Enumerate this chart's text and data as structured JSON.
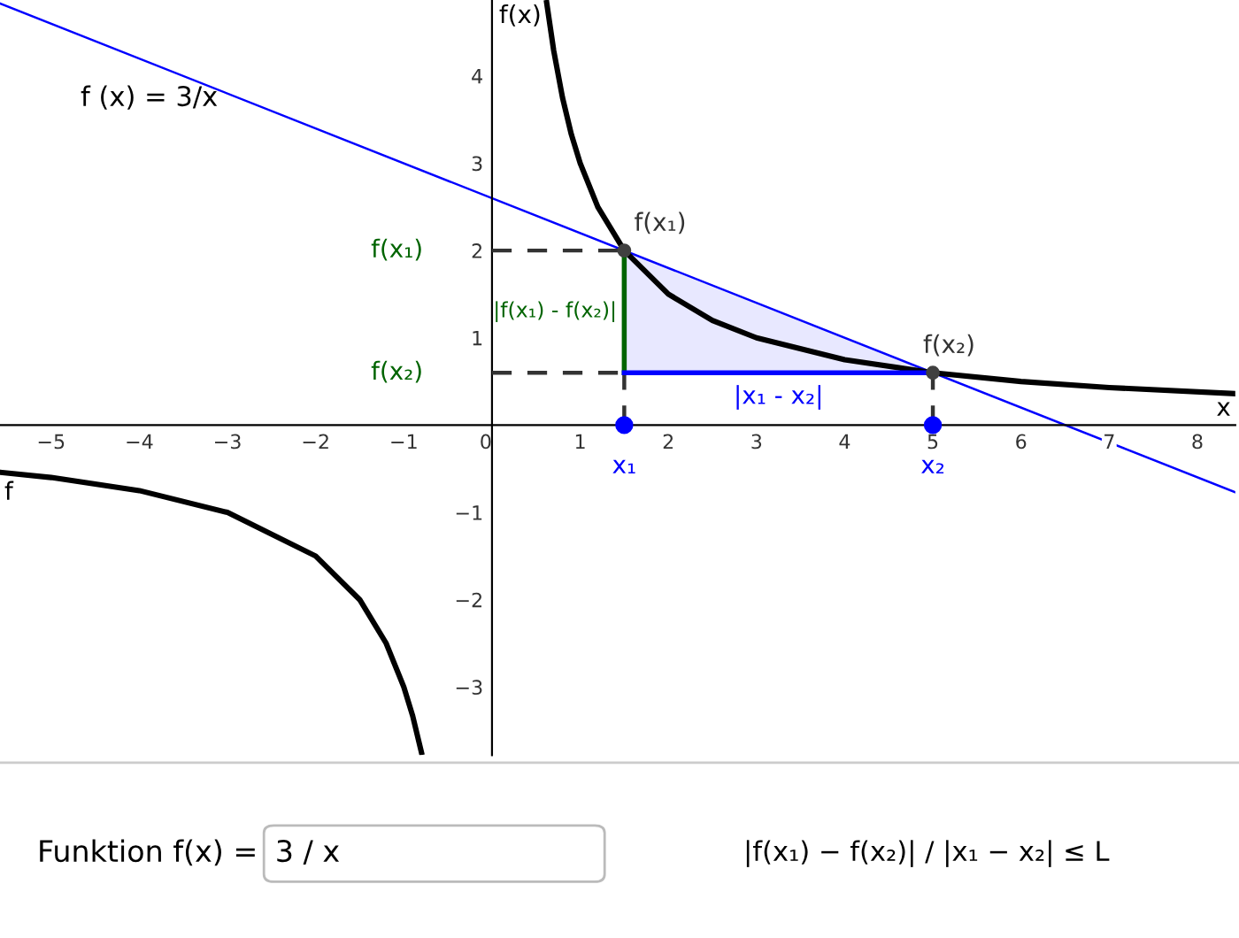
{
  "chart_data": {
    "type": "line",
    "xlabel": "x",
    "ylabel": "f(x)",
    "xlim": [
      -5.58,
      8.43
    ],
    "ylim": [
      -3.78,
      4.87
    ],
    "xticks": [
      -5,
      -4,
      -3,
      -2,
      -1,
      0,
      1,
      2,
      3,
      4,
      5,
      6,
      7,
      8
    ],
    "yticks": [
      -3,
      -2,
      -1,
      1,
      2,
      3,
      4
    ],
    "grid": false,
    "legend": false,
    "series": [
      {
        "x": [
          -5.58,
          8.43
        ],
        "values": [
          4.83,
          -0.77
        ],
        "color": "#0000ff"
      },
      {
        "x": [
          0.62,
          0.7,
          0.8,
          0.9,
          1,
          1.2,
          1.5,
          2,
          2.5,
          3,
          4,
          5,
          6,
          7,
          8.43
        ],
        "values": [
          4.84,
          4.29,
          3.75,
          3.33,
          3,
          2.5,
          2,
          1.5,
          1.2,
          1,
          0.75,
          0.6,
          0.5,
          0.43,
          0.36
        ],
        "color": "#000000"
      },
      {
        "name": "f",
        "x": [
          -5.58,
          -5,
          -4,
          -3,
          -2,
          -1.5,
          -1.2,
          -1,
          -0.9,
          -0.8
        ],
        "values": [
          -0.54,
          -0.6,
          -0.75,
          -1,
          -1.5,
          -2,
          -2.5,
          -3,
          -3.33,
          -3.75
        ],
        "color": "#000000"
      },
      {
        "type": "line",
        "line_style": "dashed",
        "x": [
          0,
          1.5
        ],
        "values": [
          2,
          2
        ],
        "color": "#333333"
      },
      {
        "type": "line",
        "line_style": "dashed",
        "x": [
          0,
          1.5
        ],
        "values": [
          0.6,
          0.6
        ],
        "color": "#333333"
      },
      {
        "type": "line",
        "line_style": "dashed",
        "x": [
          1.5,
          1.5
        ],
        "values": [
          0,
          0.6
        ],
        "color": "#333333"
      },
      {
        "type": "line",
        "line_style": "dashed",
        "x": [
          5,
          5
        ],
        "values": [
          0,
          0.6
        ],
        "color": "#333333"
      },
      {
        "type": "line",
        "x": [
          1.5,
          1.5
        ],
        "values": [
          0.6,
          2
        ],
        "color": "#006400"
      },
      {
        "type": "line",
        "x": [
          1.5,
          5
        ],
        "values": [
          0.6,
          0.6
        ],
        "lower": [
          0.6,
          0.6
        ],
        "upper": [
          2,
          0.6
        ],
        "color": "#0000ff"
      },
      {
        "type": "scatter",
        "marker": "circle",
        "x": [
          1.5,
          5
        ],
        "values": [
          2,
          0.6
        ],
        "color": "#404040"
      },
      {
        "type": "scatter",
        "marker": "circle",
        "x": [
          1.5,
          5
        ],
        "values": [
          0,
          0
        ],
        "color": "#0000ff"
      }
    ],
    "annotations": [
      {
        "text": "f(x₁)",
        "x": 1.5,
        "y": 2
      },
      {
        "text": "f(x₂)",
        "x": 5,
        "y": 0.6
      },
      {
        "text": "f(x₁)",
        "x": 0,
        "y": 2
      },
      {
        "text": "f(x₂)",
        "x": 0,
        "y": 0.6
      },
      {
        "text": "x₁",
        "x": 1.5,
        "y": 0
      },
      {
        "text": "x₂",
        "x": 5,
        "y": 0
      },
      {
        "text": "|f(x₁) - f(x₂)|",
        "x": 1.5,
        "y": 1.3
      },
      {
        "text": "|x₁ - x₂|",
        "x": 3.25,
        "y": 0.6
      },
      "f (x) = 3/x",
      "Funktion f(x) =",
      "3 / x",
      "|f(x₁) − f(x₂)| / |x₁ − x₂| ≤ L"
    ]
  }
}
